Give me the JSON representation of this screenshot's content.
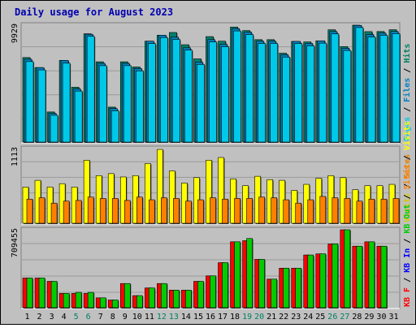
{
  "chart_data": {
    "type": "bar",
    "title": "Daily usage for August 2023",
    "days": [
      "1",
      "2",
      "3",
      "4",
      "5",
      "6",
      "7",
      "8",
      "9",
      "10",
      "11",
      "12",
      "13",
      "14",
      "15",
      "16",
      "17",
      "18",
      "19",
      "20",
      "21",
      "22",
      "23",
      "24",
      "25",
      "26",
      "27",
      "28",
      "29",
      "30",
      "31"
    ],
    "weekend_days": [
      "5",
      "6",
      "12",
      "13",
      "19",
      "20",
      "26",
      "27"
    ],
    "panels": [
      {
        "id": "hits",
        "ymax_label": "9929",
        "ymax": 9929,
        "legend": [
          {
            "label": "Pages",
            "color": "#00c8e8"
          },
          {
            "label": " / ",
            "color": "#000000"
          },
          {
            "label": "Files",
            "color": "#0080c0"
          },
          {
            "label": " / ",
            "color": "#000000"
          },
          {
            "label": "Hits",
            "color": "#008060"
          }
        ],
        "series": [
          {
            "name": "Hits",
            "color": "#00806b",
            "values": [
              7180,
              6330,
              2560,
              6940,
              4660,
              9200,
              6820,
              2970,
              6820,
              6380,
              8570,
              9080,
              9310,
              8270,
              7070,
              8960,
              8570,
              9770,
              9470,
              8700,
              8700,
              7550,
              8550,
              8510,
              8600,
              9540,
              8110,
              10000,
              9380,
              9390,
              9540
            ]
          },
          {
            "name": "Files",
            "color": "#0080c0",
            "values": [
              7040,
              6330,
              2440,
              6940,
              4520,
              9160,
              6690,
              2850,
              6690,
              6250,
              8570,
              9080,
              8920,
              8010,
              6790,
              8700,
              8310,
              9640,
              9340,
              8570,
              8570,
              7420,
              8550,
              8380,
              8600,
              9390,
              7970,
              9910,
              9130,
              9260,
              9400
            ]
          },
          {
            "name": "Pages",
            "color": "#00c8e8",
            "values": [
              6840,
              6130,
              2280,
              6700,
              4330,
              8980,
              6490,
              2660,
              6490,
              6050,
              8370,
              8880,
              8720,
              7810,
              6600,
              8510,
              8100,
              9440,
              9130,
              8380,
              8380,
              7220,
              8370,
              8180,
              8400,
              9190,
              7780,
              9730,
              8930,
              9070,
              9210
            ]
          }
        ]
      },
      {
        "id": "visits",
        "ymax_label": "1113",
        "ymax": 1113,
        "legend": [
          {
            "label": "Visits",
            "color": "#d8c800"
          },
          {
            "label": " / ",
            "color": "#000000"
          },
          {
            "label": "Sites",
            "color": "#e88000"
          }
        ],
        "series": [
          {
            "name": "Visits",
            "color": "#ffff00",
            "values": [
              540,
              640,
              540,
              590,
              540,
              940,
              710,
              740,
              690,
              710,
              890,
              1100,
              780,
              600,
              680,
              940,
              980,
              660,
              560,
              700,
              650,
              640,
              490,
              580,
              670,
              710,
              680,
              500,
              560,
              560,
              580
            ]
          },
          {
            "name": "Sites",
            "color": "#ff8000",
            "values": [
              360,
              380,
              300,
              330,
              340,
              390,
              370,
              370,
              340,
              390,
              350,
              380,
              370,
              330,
              350,
              380,
              360,
              370,
              370,
              390,
              380,
              350,
              300,
              350,
              400,
              380,
              370,
              330,
              360,
              360,
              370
            ]
          }
        ]
      },
      {
        "id": "kbytes",
        "ymax_label": "709455",
        "ymax": 709455,
        "legend": [
          {
            "label": "KB F",
            "color": "#ff0000"
          },
          {
            "label": " / ",
            "color": "#000000"
          },
          {
            "label": "KB In",
            "color": "#0000ff"
          },
          {
            "label": " / ",
            "color": "#000000"
          },
          {
            "label": "KB Out",
            "color": "#00cc00"
          },
          {
            "label": " / ",
            "color": "#000000"
          },
          {
            "label": "Sites",
            "color": "#ff8000"
          },
          {
            "label": " / ",
            "color": "#000000"
          },
          {
            "label": "Visits",
            "color": "#ffff00"
          }
        ],
        "series": [
          {
            "name": "KB F",
            "color": "#ff0000",
            "values": [
              270000,
              270000,
              240000,
              130000,
              130000,
              130000,
              90000,
              70000,
              220000,
              110000,
              180000,
              220000,
              160000,
              160000,
              240000,
              290000,
              410000,
              600000,
              610000,
              440000,
              260000,
              360000,
              360000,
              480000,
              490000,
              580000,
              710000,
              560000,
              600000,
              560000,
              0
            ]
          },
          {
            "name": "KB Out",
            "color": "#00cc00",
            "values": [
              270000,
              270000,
              240000,
              130000,
              140000,
              140000,
              90000,
              70000,
              220000,
              110000,
              180000,
              220000,
              160000,
              160000,
              240000,
              290000,
              410000,
              600000,
              630000,
              440000,
              260000,
              360000,
              360000,
              480000,
              490000,
              580000,
              710000,
              560000,
              600000,
              560000,
              0
            ]
          }
        ]
      }
    ]
  }
}
